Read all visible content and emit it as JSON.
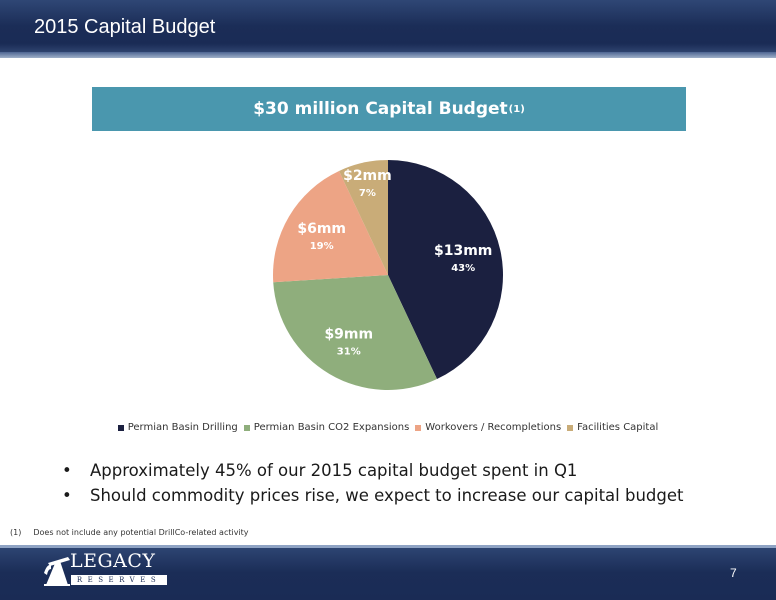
{
  "header": {
    "title": "2015 Capital Budget"
  },
  "banner": {
    "text": "$30 million Capital Budget",
    "superscript": "(1)"
  },
  "chart_data": {
    "type": "pie",
    "title": "$30 million Capital Budget",
    "legend_position": "bottom",
    "slices": [
      {
        "name": "Permian Basin Drilling",
        "value_label": "$13mm",
        "percent": 43,
        "color": "#1b2040"
      },
      {
        "name": "Permian Basin CO2 Expansions",
        "value_label": "$9mm",
        "percent": 31,
        "color": "#8fae7c"
      },
      {
        "name": "Workovers / Recompletions",
        "value_label": "$6mm",
        "percent": 19,
        "color": "#eda485"
      },
      {
        "name": "Facilities Capital",
        "value_label": "$2mm",
        "percent": 7,
        "color": "#c9ac78"
      }
    ]
  },
  "bullets": [
    "Approximately 45% of our 2015 capital budget spent in Q1",
    "Should commodity prices rise, we expect to increase our capital budget"
  ],
  "bullet_symbol": "•",
  "footnote": {
    "ref": "(1)",
    "text": "Does not include any potential DrillCo-related activity"
  },
  "logo": {
    "name": "LEGACY",
    "sub": "RESERVES",
    "icon": "pumpjack-icon"
  },
  "page_number": "7"
}
